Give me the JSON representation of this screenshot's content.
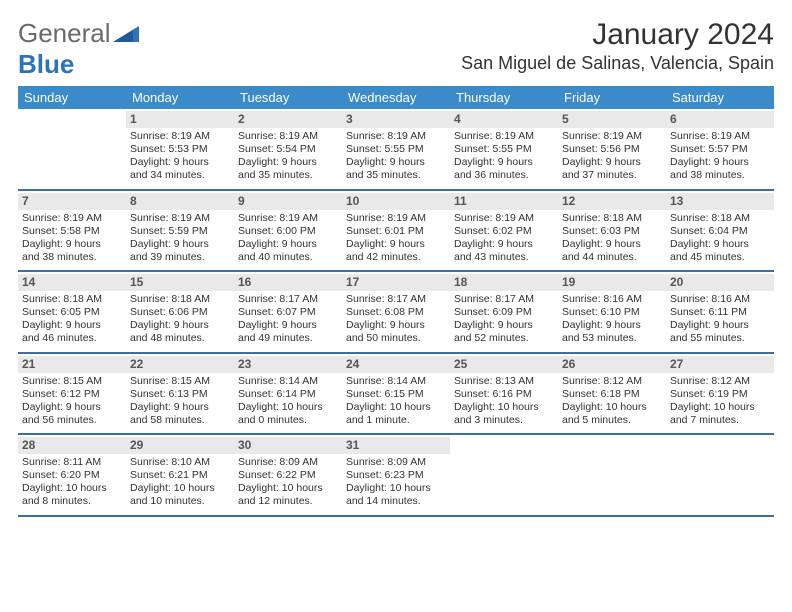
{
  "logo": {
    "general": "General",
    "blue": "Blue"
  },
  "title": "January 2024",
  "location": "San Miguel de Salinas, Valencia, Spain",
  "day_headers": [
    "Sunday",
    "Monday",
    "Tuesday",
    "Wednesday",
    "Thursday",
    "Friday",
    "Saturday"
  ],
  "colors": {
    "header_bg": "#3b8bca",
    "header_text": "#ffffff",
    "daynum_bg": "#e9e9e9",
    "week_border": "#3b6fa3",
    "text": "#333333"
  },
  "fonts": {
    "title_size_pt": 30,
    "location_size_pt": 18,
    "dayheader_size_pt": 13,
    "cell_size_pt": 10.5,
    "daynum_size_pt": 12
  },
  "weeks": [
    [
      {
        "n": "",
        "sr": "",
        "ss": "",
        "dl1": "",
        "dl2": ""
      },
      {
        "n": "1",
        "sr": "Sunrise: 8:19 AM",
        "ss": "Sunset: 5:53 PM",
        "dl1": "Daylight: 9 hours",
        "dl2": "and 34 minutes."
      },
      {
        "n": "2",
        "sr": "Sunrise: 8:19 AM",
        "ss": "Sunset: 5:54 PM",
        "dl1": "Daylight: 9 hours",
        "dl2": "and 35 minutes."
      },
      {
        "n": "3",
        "sr": "Sunrise: 8:19 AM",
        "ss": "Sunset: 5:55 PM",
        "dl1": "Daylight: 9 hours",
        "dl2": "and 35 minutes."
      },
      {
        "n": "4",
        "sr": "Sunrise: 8:19 AM",
        "ss": "Sunset: 5:55 PM",
        "dl1": "Daylight: 9 hours",
        "dl2": "and 36 minutes."
      },
      {
        "n": "5",
        "sr": "Sunrise: 8:19 AM",
        "ss": "Sunset: 5:56 PM",
        "dl1": "Daylight: 9 hours",
        "dl2": "and 37 minutes."
      },
      {
        "n": "6",
        "sr": "Sunrise: 8:19 AM",
        "ss": "Sunset: 5:57 PM",
        "dl1": "Daylight: 9 hours",
        "dl2": "and 38 minutes."
      }
    ],
    [
      {
        "n": "7",
        "sr": "Sunrise: 8:19 AM",
        "ss": "Sunset: 5:58 PM",
        "dl1": "Daylight: 9 hours",
        "dl2": "and 38 minutes."
      },
      {
        "n": "8",
        "sr": "Sunrise: 8:19 AM",
        "ss": "Sunset: 5:59 PM",
        "dl1": "Daylight: 9 hours",
        "dl2": "and 39 minutes."
      },
      {
        "n": "9",
        "sr": "Sunrise: 8:19 AM",
        "ss": "Sunset: 6:00 PM",
        "dl1": "Daylight: 9 hours",
        "dl2": "and 40 minutes."
      },
      {
        "n": "10",
        "sr": "Sunrise: 8:19 AM",
        "ss": "Sunset: 6:01 PM",
        "dl1": "Daylight: 9 hours",
        "dl2": "and 42 minutes."
      },
      {
        "n": "11",
        "sr": "Sunrise: 8:19 AM",
        "ss": "Sunset: 6:02 PM",
        "dl1": "Daylight: 9 hours",
        "dl2": "and 43 minutes."
      },
      {
        "n": "12",
        "sr": "Sunrise: 8:18 AM",
        "ss": "Sunset: 6:03 PM",
        "dl1": "Daylight: 9 hours",
        "dl2": "and 44 minutes."
      },
      {
        "n": "13",
        "sr": "Sunrise: 8:18 AM",
        "ss": "Sunset: 6:04 PM",
        "dl1": "Daylight: 9 hours",
        "dl2": "and 45 minutes."
      }
    ],
    [
      {
        "n": "14",
        "sr": "Sunrise: 8:18 AM",
        "ss": "Sunset: 6:05 PM",
        "dl1": "Daylight: 9 hours",
        "dl2": "and 46 minutes."
      },
      {
        "n": "15",
        "sr": "Sunrise: 8:18 AM",
        "ss": "Sunset: 6:06 PM",
        "dl1": "Daylight: 9 hours",
        "dl2": "and 48 minutes."
      },
      {
        "n": "16",
        "sr": "Sunrise: 8:17 AM",
        "ss": "Sunset: 6:07 PM",
        "dl1": "Daylight: 9 hours",
        "dl2": "and 49 minutes."
      },
      {
        "n": "17",
        "sr": "Sunrise: 8:17 AM",
        "ss": "Sunset: 6:08 PM",
        "dl1": "Daylight: 9 hours",
        "dl2": "and 50 minutes."
      },
      {
        "n": "18",
        "sr": "Sunrise: 8:17 AM",
        "ss": "Sunset: 6:09 PM",
        "dl1": "Daylight: 9 hours",
        "dl2": "and 52 minutes."
      },
      {
        "n": "19",
        "sr": "Sunrise: 8:16 AM",
        "ss": "Sunset: 6:10 PM",
        "dl1": "Daylight: 9 hours",
        "dl2": "and 53 minutes."
      },
      {
        "n": "20",
        "sr": "Sunrise: 8:16 AM",
        "ss": "Sunset: 6:11 PM",
        "dl1": "Daylight: 9 hours",
        "dl2": "and 55 minutes."
      }
    ],
    [
      {
        "n": "21",
        "sr": "Sunrise: 8:15 AM",
        "ss": "Sunset: 6:12 PM",
        "dl1": "Daylight: 9 hours",
        "dl2": "and 56 minutes."
      },
      {
        "n": "22",
        "sr": "Sunrise: 8:15 AM",
        "ss": "Sunset: 6:13 PM",
        "dl1": "Daylight: 9 hours",
        "dl2": "and 58 minutes."
      },
      {
        "n": "23",
        "sr": "Sunrise: 8:14 AM",
        "ss": "Sunset: 6:14 PM",
        "dl1": "Daylight: 10 hours",
        "dl2": "and 0 minutes."
      },
      {
        "n": "24",
        "sr": "Sunrise: 8:14 AM",
        "ss": "Sunset: 6:15 PM",
        "dl1": "Daylight: 10 hours",
        "dl2": "and 1 minute."
      },
      {
        "n": "25",
        "sr": "Sunrise: 8:13 AM",
        "ss": "Sunset: 6:16 PM",
        "dl1": "Daylight: 10 hours",
        "dl2": "and 3 minutes."
      },
      {
        "n": "26",
        "sr": "Sunrise: 8:12 AM",
        "ss": "Sunset: 6:18 PM",
        "dl1": "Daylight: 10 hours",
        "dl2": "and 5 minutes."
      },
      {
        "n": "27",
        "sr": "Sunrise: 8:12 AM",
        "ss": "Sunset: 6:19 PM",
        "dl1": "Daylight: 10 hours",
        "dl2": "and 7 minutes."
      }
    ],
    [
      {
        "n": "28",
        "sr": "Sunrise: 8:11 AM",
        "ss": "Sunset: 6:20 PM",
        "dl1": "Daylight: 10 hours",
        "dl2": "and 8 minutes."
      },
      {
        "n": "29",
        "sr": "Sunrise: 8:10 AM",
        "ss": "Sunset: 6:21 PM",
        "dl1": "Daylight: 10 hours",
        "dl2": "and 10 minutes."
      },
      {
        "n": "30",
        "sr": "Sunrise: 8:09 AM",
        "ss": "Sunset: 6:22 PM",
        "dl1": "Daylight: 10 hours",
        "dl2": "and 12 minutes."
      },
      {
        "n": "31",
        "sr": "Sunrise: 8:09 AM",
        "ss": "Sunset: 6:23 PM",
        "dl1": "Daylight: 10 hours",
        "dl2": "and 14 minutes."
      },
      {
        "n": "",
        "sr": "",
        "ss": "",
        "dl1": "",
        "dl2": ""
      },
      {
        "n": "",
        "sr": "",
        "ss": "",
        "dl1": "",
        "dl2": ""
      },
      {
        "n": "",
        "sr": "",
        "ss": "",
        "dl1": "",
        "dl2": ""
      }
    ]
  ]
}
